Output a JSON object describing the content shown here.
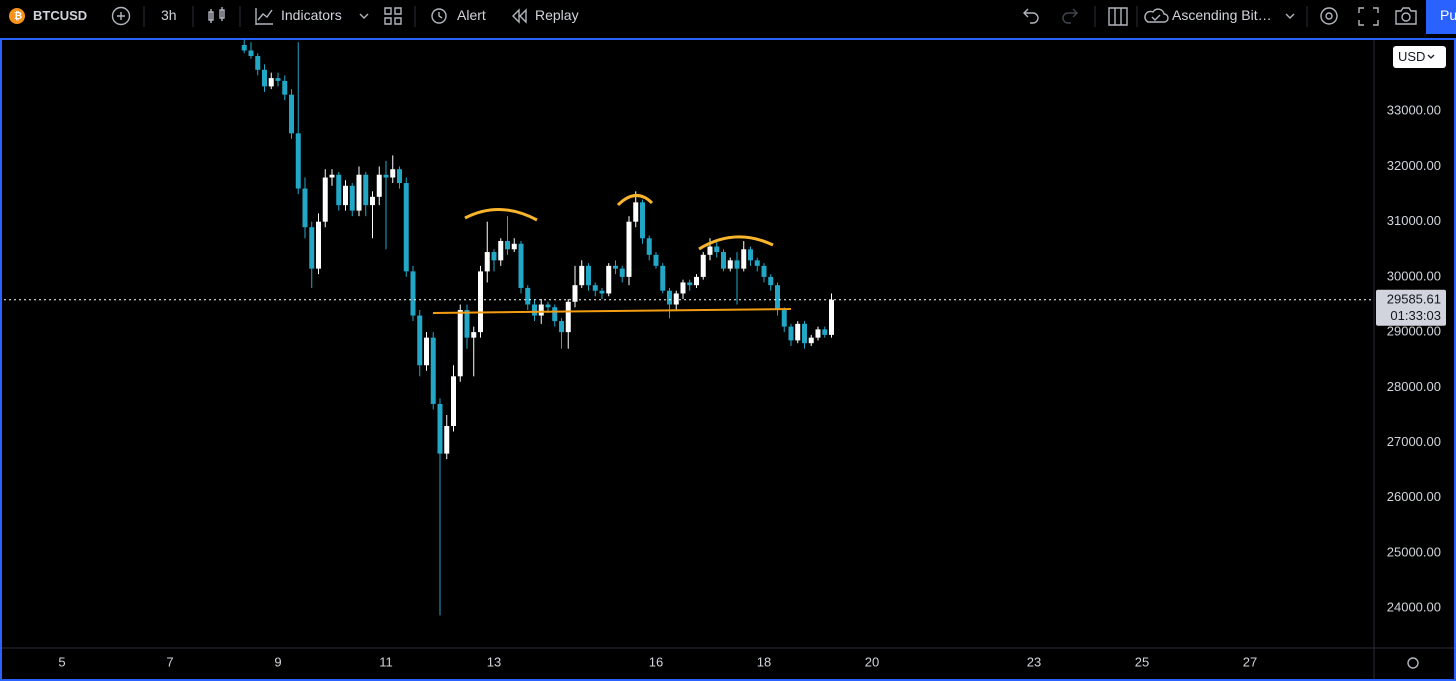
{
  "toolbar": {
    "symbol": "BTCUSD",
    "interval": "3h",
    "indicators": "Indicators",
    "alert": "Alert",
    "replay": "Replay",
    "layout_name": "Ascending Bit…",
    "publish": "Pu"
  },
  "chart_data": {
    "type": "candlestick",
    "currency": "USD",
    "countdown": "01:33:03",
    "up_color": "#ffffff",
    "down_color": "#22a7c7",
    "last_price_color": "#ffffff",
    "xlim": [
      3.926,
      29.278
    ],
    "xticks": [
      5,
      7,
      9,
      11,
      13,
      16,
      18,
      20,
      23,
      25,
      27
    ],
    "ylim": [
      23280,
      34290
    ],
    "yticks": [
      {
        "value": 24000,
        "label": "24000.00"
      },
      {
        "value": 25000,
        "label": "25000.00"
      },
      {
        "value": 26000,
        "label": "26000.00"
      },
      {
        "value": 27000,
        "label": "27000.00"
      },
      {
        "value": 28000,
        "label": "28000.00"
      },
      {
        "value": 29000,
        "label": "29000.00"
      },
      {
        "value": 30000,
        "label": "30000.00"
      },
      {
        "value": 31000,
        "label": "31000.00"
      },
      {
        "value": 32000,
        "label": "32000.00"
      },
      {
        "value": 33000,
        "label": "33000.00"
      }
    ],
    "grid": false,
    "x": [
      8.375,
      8.5,
      8.625,
      8.75,
      8.875,
      9,
      9.125,
      9.25,
      9.375,
      9.5,
      9.625,
      9.75,
      9.875,
      10,
      10.125,
      10.25,
      10.375,
      10.5,
      10.625,
      10.75,
      10.875,
      11,
      11.125,
      11.25,
      11.375,
      11.5,
      11.625,
      11.75,
      11.875,
      12,
      12.125,
      12.25,
      12.375,
      12.5,
      12.625,
      12.75,
      12.875,
      13,
      13.125,
      13.25,
      13.375,
      13.5,
      13.625,
      13.75,
      13.875,
      14,
      14.125,
      14.25,
      14.375,
      14.5,
      14.625,
      14.75,
      14.875,
      15,
      15.125,
      15.25,
      15.375,
      15.5,
      15.625,
      15.75,
      15.875,
      16,
      16.125,
      16.25,
      16.375,
      16.5,
      16.625,
      16.75,
      16.875,
      17,
      17.125,
      17.25,
      17.375,
      17.5,
      17.625,
      17.75,
      17.875,
      18,
      18.125,
      18.25,
      18.375,
      18.5,
      18.625,
      18.75,
      18.875,
      19,
      19.125,
      19.25
    ],
    "open": [
      34200,
      34100,
      34000,
      33750,
      33450,
      33600,
      33550,
      33300,
      32600,
      31600,
      30900,
      30150,
      31000,
      31800,
      31850,
      31300,
      31650,
      31200,
      31850,
      31300,
      31450,
      31850,
      31800,
      31950,
      31700,
      30100,
      29300,
      28400,
      28900,
      27700,
      26800,
      27300,
      28200,
      29400,
      28900,
      29000,
      30100,
      30450,
      30300,
      30650,
      30500,
      30600,
      29800,
      29500,
      29300,
      29500,
      29450,
      29200,
      29000,
      29550,
      29850,
      30200,
      29850,
      29750,
      29700,
      30200,
      30150,
      30000,
      31000,
      31350,
      30700,
      30400,
      30200,
      29750,
      29500,
      29700,
      29900,
      29850,
      30000,
      30400,
      30550,
      30450,
      30150,
      30300,
      30150,
      30500,
      30300,
      30200,
      30000,
      29850,
      29400,
      29100,
      28850,
      29150,
      28800,
      28900,
      29050,
      28950
    ],
    "high": [
      34300,
      34250,
      34050,
      33850,
      33700,
      33700,
      33650,
      33400,
      34250,
      31800,
      31000,
      31150,
      31950,
      31950,
      31900,
      31750,
      31700,
      32000,
      31900,
      31550,
      32000,
      32100,
      32200,
      32000,
      31800,
      30200,
      29400,
      29000,
      29000,
      27800,
      27500,
      28400,
      29500,
      29500,
      29100,
      30200,
      31000,
      30500,
      30700,
      31100,
      30700,
      30650,
      29850,
      29600,
      29600,
      29550,
      29500,
      29250,
      29600,
      30200,
      30300,
      30250,
      29900,
      29800,
      30250,
      30300,
      30200,
      31100,
      31550,
      31400,
      30750,
      30450,
      30250,
      29800,
      29750,
      29950,
      29950,
      30050,
      30450,
      30700,
      30650,
      30500,
      30350,
      30450,
      30650,
      30550,
      30350,
      30250,
      30050,
      29900,
      29450,
      29150,
      29200,
      29200,
      28950,
      29100,
      29100,
      29700
    ],
    "low": [
      34050,
      33950,
      33650,
      33350,
      33400,
      33450,
      33200,
      32500,
      31500,
      30700,
      29800,
      30050,
      30900,
      31650,
      31200,
      31200,
      31100,
      31100,
      31100,
      30700,
      31300,
      30500,
      31700,
      31600,
      30000,
      29200,
      28200,
      28300,
      27600,
      23870,
      26700,
      27200,
      28100,
      28700,
      28200,
      28900,
      29900,
      30100,
      30200,
      30400,
      30450,
      29700,
      29400,
      29200,
      29150,
      29350,
      29100,
      28700,
      28700,
      29450,
      29800,
      29750,
      29650,
      29600,
      29650,
      30050,
      29900,
      29850,
      30900,
      30600,
      30300,
      30150,
      29700,
      29250,
      29400,
      29600,
      29750,
      29800,
      29950,
      30300,
      30350,
      30100,
      30100,
      29500,
      30100,
      30200,
      30100,
      29900,
      29750,
      29300,
      29000,
      28750,
      28800,
      28700,
      28750,
      28850,
      28900,
      28900
    ],
    "close": [
      34100,
      34000,
      33750,
      33450,
      33600,
      33550,
      33300,
      32600,
      31600,
      30900,
      30150,
      31000,
      31800,
      31850,
      31300,
      31650,
      31200,
      31850,
      31300,
      31450,
      31850,
      31800,
      31950,
      31700,
      30100,
      29300,
      28400,
      28900,
      27700,
      26800,
      27300,
      28200,
      29400,
      28900,
      29000,
      30100,
      30450,
      30300,
      30650,
      30500,
      30600,
      29800,
      29500,
      29300,
      29500,
      29450,
      29200,
      29000,
      29550,
      29850,
      30200,
      29850,
      29750,
      29700,
      30200,
      30150,
      30000,
      31000,
      31350,
      30700,
      30400,
      30200,
      29750,
      29500,
      29700,
      29900,
      29850,
      30000,
      30400,
      30550,
      30450,
      30150,
      30300,
      30150,
      30500,
      30300,
      30200,
      30000,
      29850,
      29400,
      29100,
      28850,
      29150,
      28800,
      28900,
      29050,
      28950,
      29585.61
    ]
  }
}
